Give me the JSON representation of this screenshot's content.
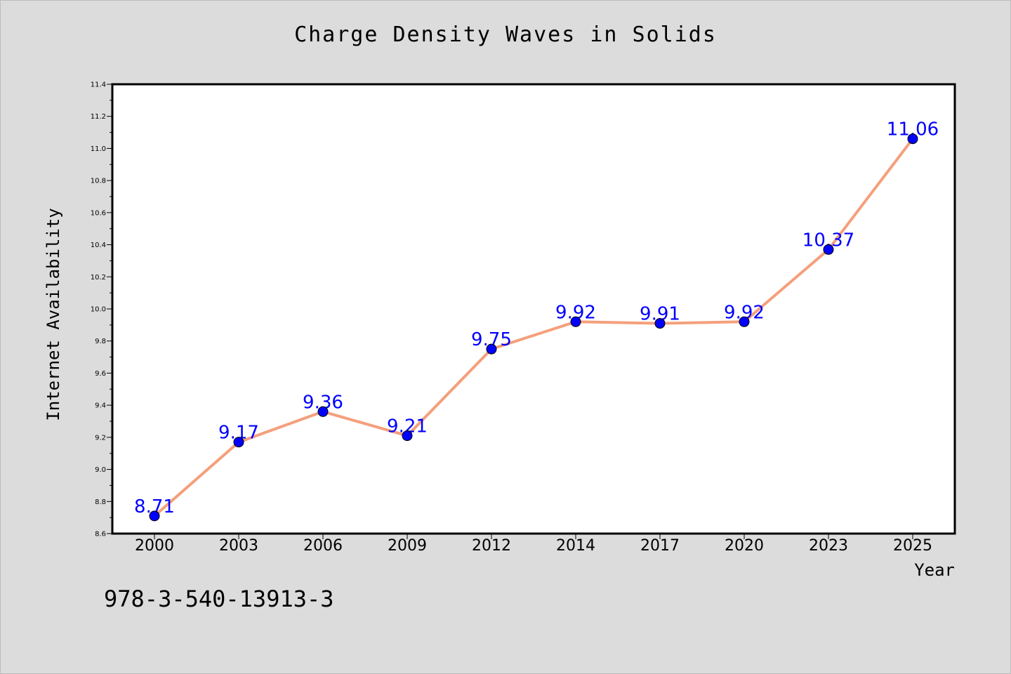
{
  "chart_data": {
    "type": "line",
    "title": "Charge Density Waves in Solids",
    "xlabel": "Year",
    "ylabel": "Internet Availability",
    "categories": [
      "2000",
      "2003",
      "2006",
      "2009",
      "2012",
      "2014",
      "2017",
      "2020",
      "2023",
      "2025"
    ],
    "series": [
      {
        "values": [
          8.71,
          9.17,
          9.36,
          9.21,
          9.75,
          9.92,
          9.91,
          9.92,
          10.37,
          11.06
        ],
        "data_labels": [
          "8.71",
          "9.17",
          "9.36",
          "9.21",
          "9.75",
          "9.92",
          "9.91",
          "9.92",
          "10.37",
          "11.06"
        ]
      }
    ],
    "ylim": [
      8.6,
      11.4
    ],
    "yticks": [
      "8.6",
      "8.8",
      "9.0",
      "9.2",
      "9.4",
      "9.6",
      "9.8",
      "10.0",
      "10.2",
      "10.4",
      "10.6",
      "10.8",
      "11.0",
      "11.2",
      "11.4"
    ],
    "grid": false,
    "legend": "none",
    "line_color": "#f4a07c",
    "marker_color": "#0000ff",
    "label_color": "#0000ff",
    "background_color": "#dcdcdc",
    "plot_background": "#ffffff"
  },
  "footer": {
    "code": "978-3-540-13913-3"
  }
}
